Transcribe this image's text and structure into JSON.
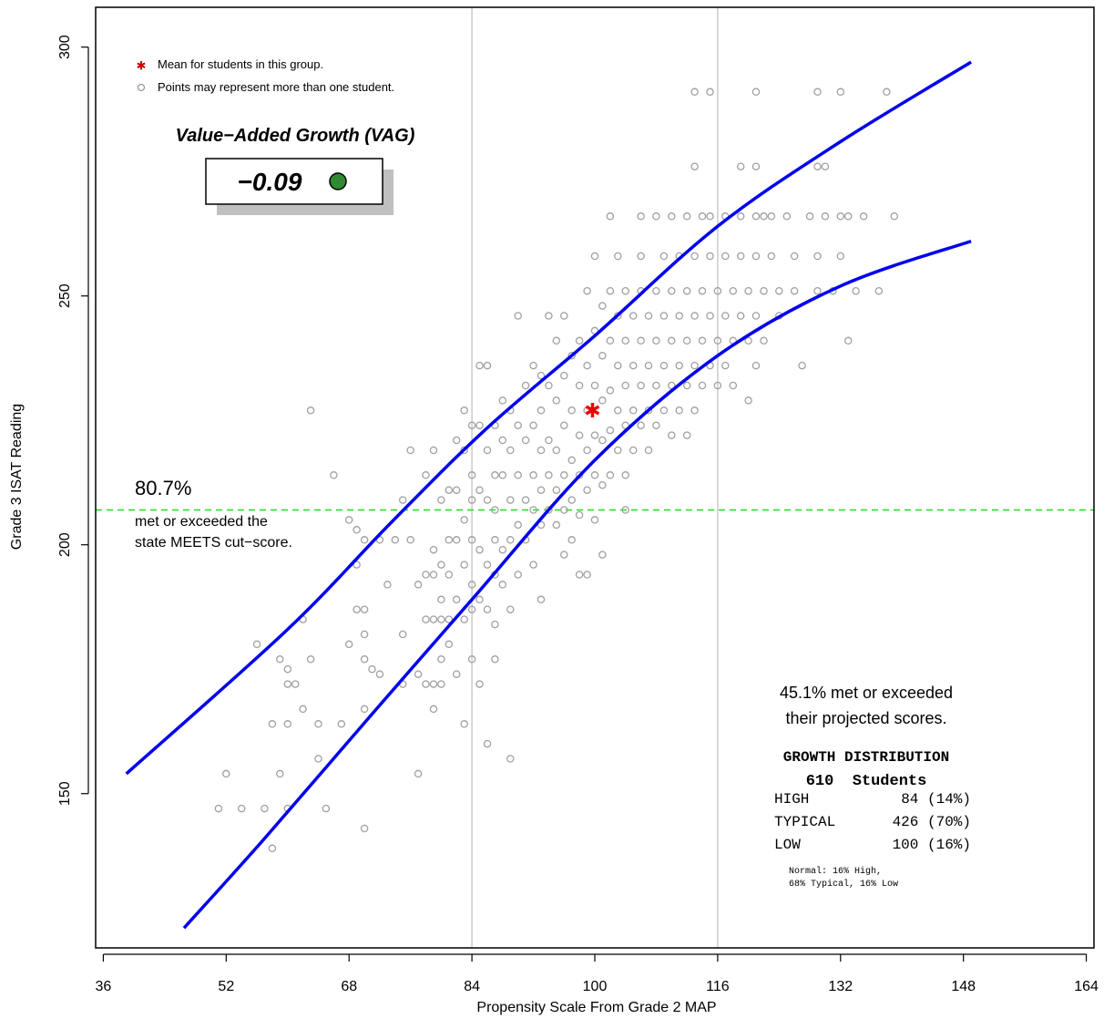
{
  "chart_data": {
    "type": "scatter",
    "title": "",
    "xlabel": "Propensity Scale From Grade 2 MAP",
    "ylabel": "Grade 3 ISAT Reading",
    "xlim": [
      35,
      165
    ],
    "ylim": [
      119,
      308
    ],
    "x_ticks": [
      36,
      52,
      68,
      84,
      100,
      116,
      132,
      148,
      164
    ],
    "y_ticks": [
      150,
      200,
      250,
      300
    ],
    "vertical_reference_lines_x": [
      84,
      116
    ],
    "cut_score_line_y": 207,
    "legend": {
      "mean_label": "Mean for students in this group.",
      "points_label": "Points may represent more than one student."
    },
    "vag": {
      "title": "Value−Added Growth (VAG)",
      "value": "−0.09",
      "indicator_color": "#2e8b2e"
    },
    "meets": {
      "percent": "80.7%",
      "line1": "met or exceeded the",
      "line2": "state MEETS cut−score."
    },
    "projected": {
      "line1": "45.1% met or exceeded",
      "line2": "their projected scores."
    },
    "growth_distribution": {
      "title": "GROWTH DISTRIBUTION",
      "students": "610  Students",
      "rows": [
        {
          "label": "HIGH",
          "value": "84 (14%)"
        },
        {
          "label": "TYPICAL",
          "value": "426 (70%)"
        },
        {
          "label": "LOW",
          "value": "100 (16%)"
        }
      ],
      "note1": "Normal: 16% High,",
      "note2": "68% Typical, 16% Low"
    },
    "mean_point": {
      "x": 99.7,
      "y": 227
    },
    "upper_curve": [
      [
        39,
        154
      ],
      [
        60,
        183
      ],
      [
        73.5,
        204.5
      ],
      [
        86,
        223.5
      ],
      [
        100,
        242
      ],
      [
        116,
        264
      ],
      [
        132,
        281
      ],
      [
        149,
        297
      ]
    ],
    "lower_curve": [
      [
        46.5,
        123
      ],
      [
        57,
        141
      ],
      [
        71,
        166
      ],
      [
        84,
        189
      ],
      [
        100,
        217
      ],
      [
        116,
        238
      ],
      [
        132,
        252
      ],
      [
        149,
        261
      ]
    ],
    "points": [
      [
        51,
        147
      ],
      [
        52,
        154
      ],
      [
        54,
        147
      ],
      [
        56,
        180
      ],
      [
        57,
        147
      ],
      [
        58,
        164
      ],
      [
        58,
        139
      ],
      [
        59,
        177
      ],
      [
        59,
        154
      ],
      [
        60,
        175
      ],
      [
        60,
        172
      ],
      [
        60,
        164
      ],
      [
        60,
        147
      ],
      [
        61,
        172
      ],
      [
        62,
        185
      ],
      [
        62,
        167
      ],
      [
        63,
        227
      ],
      [
        63,
        177
      ],
      [
        64,
        164
      ],
      [
        64,
        157
      ],
      [
        65,
        147
      ],
      [
        66,
        214
      ],
      [
        67,
        164
      ],
      [
        68,
        180
      ],
      [
        68,
        205
      ],
      [
        69,
        196
      ],
      [
        69,
        203
      ],
      [
        69,
        187
      ],
      [
        70,
        201
      ],
      [
        70,
        187
      ],
      [
        70,
        182
      ],
      [
        70,
        177
      ],
      [
        70,
        167
      ],
      [
        70,
        143
      ],
      [
        71,
        175
      ],
      [
        72,
        201
      ],
      [
        72,
        174
      ],
      [
        73,
        192
      ],
      [
        74,
        201
      ],
      [
        75,
        209
      ],
      [
        75,
        172
      ],
      [
        75,
        182
      ],
      [
        76,
        219
      ],
      [
        76,
        201
      ],
      [
        77,
        192
      ],
      [
        77,
        174
      ],
      [
        77,
        154
      ],
      [
        78,
        214
      ],
      [
        78,
        194
      ],
      [
        78,
        185
      ],
      [
        78,
        172
      ],
      [
        79,
        219
      ],
      [
        79,
        199
      ],
      [
        79,
        194
      ],
      [
        79,
        185
      ],
      [
        79,
        172
      ],
      [
        79,
        167
      ],
      [
        80,
        209
      ],
      [
        80,
        196
      ],
      [
        80,
        189
      ],
      [
        80,
        177
      ],
      [
        80,
        185
      ],
      [
        80,
        172
      ],
      [
        81,
        211
      ],
      [
        81,
        201
      ],
      [
        81,
        194
      ],
      [
        81,
        185
      ],
      [
        81,
        180
      ],
      [
        82,
        221
      ],
      [
        82,
        211
      ],
      [
        82,
        201
      ],
      [
        82,
        189
      ],
      [
        82,
        174
      ],
      [
        83,
        227
      ],
      [
        83,
        219
      ],
      [
        83,
        205
      ],
      [
        83,
        196
      ],
      [
        83,
        185
      ],
      [
        83,
        164
      ],
      [
        84,
        224
      ],
      [
        84,
        214
      ],
      [
        84,
        209
      ],
      [
        84,
        201
      ],
      [
        84,
        192
      ],
      [
        84,
        187
      ],
      [
        84,
        177
      ],
      [
        85,
        236
      ],
      [
        85,
        224
      ],
      [
        85,
        211
      ],
      [
        85,
        199
      ],
      [
        85,
        189
      ],
      [
        85,
        172
      ],
      [
        86,
        236
      ],
      [
        86,
        219
      ],
      [
        86,
        209
      ],
      [
        86,
        196
      ],
      [
        86,
        187
      ],
      [
        86,
        160
      ],
      [
        87,
        224
      ],
      [
        87,
        214
      ],
      [
        87,
        207
      ],
      [
        87,
        201
      ],
      [
        87,
        194
      ],
      [
        87,
        184
      ],
      [
        87,
        177
      ],
      [
        88,
        229
      ],
      [
        88,
        221
      ],
      [
        88,
        214
      ],
      [
        88,
        199
      ],
      [
        88,
        192
      ],
      [
        89,
        227
      ],
      [
        89,
        219
      ],
      [
        89,
        209
      ],
      [
        89,
        201
      ],
      [
        89,
        187
      ],
      [
        89,
        157
      ],
      [
        90,
        246
      ],
      [
        90,
        224
      ],
      [
        90,
        214
      ],
      [
        90,
        204
      ],
      [
        90,
        194
      ],
      [
        91,
        232
      ],
      [
        91,
        221
      ],
      [
        91,
        209
      ],
      [
        91,
        201
      ],
      [
        92,
        236
      ],
      [
        92,
        224
      ],
      [
        92,
        214
      ],
      [
        92,
        207
      ],
      [
        92,
        196
      ],
      [
        93,
        234
      ],
      [
        93,
        227
      ],
      [
        93,
        219
      ],
      [
        93,
        211
      ],
      [
        93,
        204
      ],
      [
        93,
        189
      ],
      [
        94,
        246
      ],
      [
        94,
        232
      ],
      [
        94,
        221
      ],
      [
        94,
        214
      ],
      [
        94,
        207
      ],
      [
        95,
        241
      ],
      [
        95,
        229
      ],
      [
        95,
        219
      ],
      [
        95,
        211
      ],
      [
        95,
        204
      ],
      [
        96,
        246
      ],
      [
        96,
        234
      ],
      [
        96,
        224
      ],
      [
        96,
        214
      ],
      [
        96,
        207
      ],
      [
        96,
        198
      ],
      [
        97,
        238
      ],
      [
        97,
        227
      ],
      [
        97,
        217
      ],
      [
        97,
        209
      ],
      [
        97,
        201
      ],
      [
        98,
        241
      ],
      [
        98,
        232
      ],
      [
        98,
        222
      ],
      [
        98,
        214
      ],
      [
        98,
        206
      ],
      [
        98,
        194
      ],
      [
        99,
        251
      ],
      [
        99,
        236
      ],
      [
        99,
        227
      ],
      [
        99,
        219
      ],
      [
        99,
        211
      ],
      [
        99,
        194
      ],
      [
        100,
        258
      ],
      [
        100,
        243
      ],
      [
        100,
        232
      ],
      [
        100,
        222
      ],
      [
        100,
        214
      ],
      [
        100,
        205
      ],
      [
        101,
        248
      ],
      [
        101,
        238
      ],
      [
        101,
        229
      ],
      [
        101,
        221
      ],
      [
        101,
        212
      ],
      [
        101,
        198
      ],
      [
        102,
        266
      ],
      [
        102,
        251
      ],
      [
        102,
        241
      ],
      [
        102,
        231
      ],
      [
        102,
        223
      ],
      [
        102,
        214
      ],
      [
        103,
        258
      ],
      [
        103,
        246
      ],
      [
        103,
        236
      ],
      [
        103,
        227
      ],
      [
        103,
        219
      ],
      [
        104,
        251
      ],
      [
        104,
        241
      ],
      [
        104,
        232
      ],
      [
        104,
        224
      ],
      [
        104,
        214
      ],
      [
        104,
        207
      ],
      [
        105,
        246
      ],
      [
        105,
        236
      ],
      [
        105,
        227
      ],
      [
        105,
        219
      ],
      [
        106,
        266
      ],
      [
        106,
        258
      ],
      [
        106,
        251
      ],
      [
        106,
        241
      ],
      [
        106,
        232
      ],
      [
        106,
        224
      ],
      [
        107,
        246
      ],
      [
        107,
        236
      ],
      [
        107,
        227
      ],
      [
        107,
        219
      ],
      [
        108,
        266
      ],
      [
        108,
        251
      ],
      [
        108,
        241
      ],
      [
        108,
        232
      ],
      [
        108,
        224
      ],
      [
        109,
        258
      ],
      [
        109,
        246
      ],
      [
        109,
        236
      ],
      [
        109,
        227
      ],
      [
        110,
        266
      ],
      [
        110,
        251
      ],
      [
        110,
        241
      ],
      [
        110,
        232
      ],
      [
        110,
        222
      ],
      [
        111,
        258
      ],
      [
        111,
        246
      ],
      [
        111,
        236
      ],
      [
        111,
        227
      ],
      [
        112,
        266
      ],
      [
        112,
        251
      ],
      [
        112,
        241
      ],
      [
        112,
        232
      ],
      [
        112,
        222
      ],
      [
        113,
        291
      ],
      [
        113,
        276
      ],
      [
        113,
        258
      ],
      [
        113,
        246
      ],
      [
        113,
        236
      ],
      [
        113,
        227
      ],
      [
        114,
        266
      ],
      [
        114,
        251
      ],
      [
        114,
        241
      ],
      [
        114,
        232
      ],
      [
        115,
        291
      ],
      [
        115,
        266
      ],
      [
        115,
        258
      ],
      [
        115,
        246
      ],
      [
        115,
        236
      ],
      [
        116,
        251
      ],
      [
        116,
        241
      ],
      [
        116,
        232
      ],
      [
        117,
        266
      ],
      [
        117,
        258
      ],
      [
        117,
        246
      ],
      [
        117,
        236
      ],
      [
        118,
        251
      ],
      [
        118,
        241
      ],
      [
        118,
        232
      ],
      [
        119,
        276
      ],
      [
        119,
        266
      ],
      [
        119,
        258
      ],
      [
        119,
        246
      ],
      [
        120,
        251
      ],
      [
        120,
        241
      ],
      [
        120,
        229
      ],
      [
        121,
        291
      ],
      [
        121,
        276
      ],
      [
        121,
        266
      ],
      [
        121,
        258
      ],
      [
        121,
        246
      ],
      [
        121,
        236
      ],
      [
        122,
        266
      ],
      [
        122,
        251
      ],
      [
        122,
        241
      ],
      [
        123,
        266
      ],
      [
        123,
        258
      ],
      [
        124,
        251
      ],
      [
        124,
        246
      ],
      [
        125,
        266
      ],
      [
        126,
        258
      ],
      [
        126,
        251
      ],
      [
        127,
        236
      ],
      [
        128,
        266
      ],
      [
        129,
        291
      ],
      [
        129,
        276
      ],
      [
        129,
        258
      ],
      [
        129,
        251
      ],
      [
        130,
        266
      ],
      [
        130,
        276
      ],
      [
        131,
        251
      ],
      [
        132,
        291
      ],
      [
        132,
        266
      ],
      [
        132,
        258
      ],
      [
        133,
        266
      ],
      [
        133,
        241
      ],
      [
        134,
        251
      ],
      [
        135,
        266
      ],
      [
        137,
        251
      ],
      [
        138,
        291
      ],
      [
        139,
        266
      ]
    ]
  }
}
